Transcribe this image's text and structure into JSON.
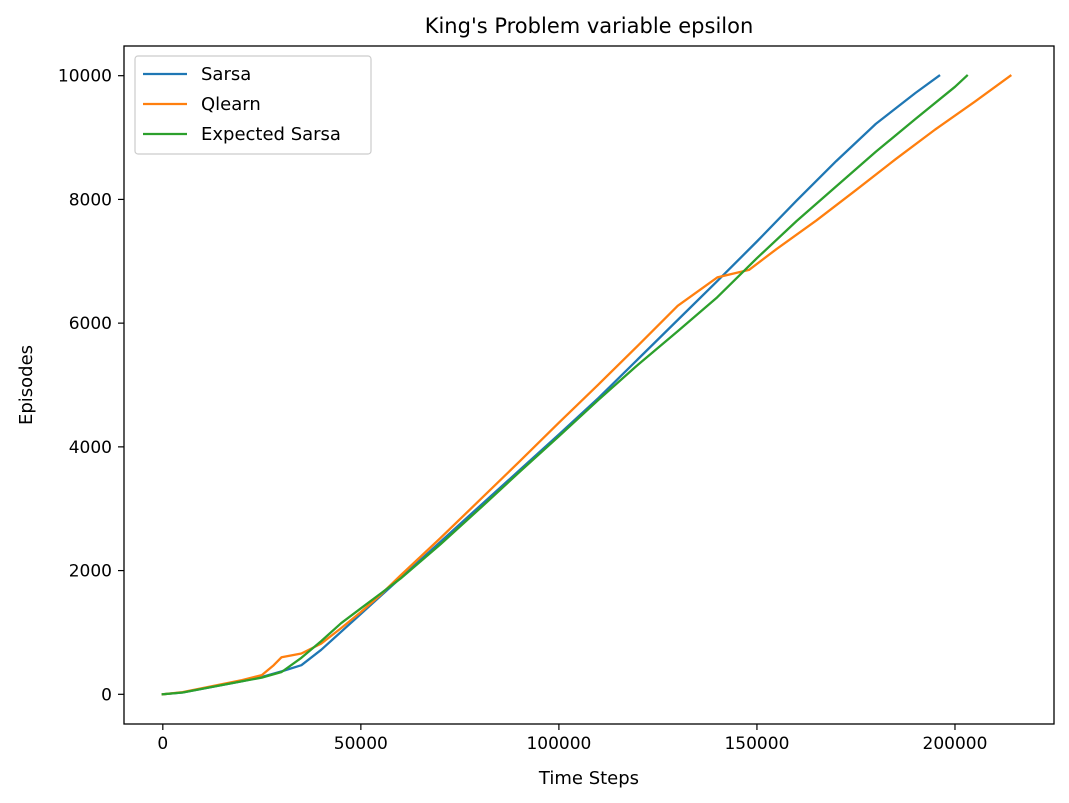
{
  "chart_data": {
    "type": "line",
    "title": "King's Problem variable epsilon",
    "xlabel": "Time Steps",
    "ylabel": "Episodes",
    "xlim": [
      -9800,
      225000
    ],
    "ylim": [
      -480,
      10480
    ],
    "xticks": [
      0,
      50000,
      100000,
      150000,
      200000
    ],
    "yticks": [
      0,
      2000,
      4000,
      6000,
      8000,
      10000
    ],
    "grid": false,
    "legend_position": "top-left",
    "series": [
      {
        "name": "Sarsa",
        "color": "#1f77b4",
        "x": [
          0,
          5000,
          10000,
          15000,
          20000,
          25000,
          30000,
          35000,
          40000,
          45000,
          50000,
          55000,
          60000,
          70000,
          80000,
          90000,
          100000,
          110000,
          120000,
          130000,
          140000,
          150000,
          160000,
          170000,
          180000,
          190000,
          196000
        ],
        "y": [
          0,
          30,
          90,
          150,
          210,
          280,
          370,
          470,
          720,
          1010,
          1300,
          1590,
          1880,
          2460,
          3040,
          3620,
          4200,
          4790,
          5420,
          6050,
          6680,
          7320,
          7980,
          8620,
          9220,
          9720,
          10000
        ]
      },
      {
        "name": "Qlearn",
        "color": "#ff7f0e",
        "x": [
          0,
          5000,
          10000,
          15000,
          20000,
          25000,
          28000,
          30000,
          35000,
          40000,
          45000,
          50000,
          55000,
          60000,
          70000,
          80000,
          90000,
          100000,
          110000,
          120000,
          130000,
          140000,
          148000,
          155000,
          165000,
          175000,
          185000,
          195000,
          205000,
          214000
        ],
        "y": [
          0,
          35,
          100,
          165,
          230,
          310,
          470,
          600,
          660,
          820,
          1070,
          1330,
          1610,
          1920,
          2520,
          3140,
          3760,
          4390,
          5010,
          5640,
          6280,
          6740,
          6860,
          7200,
          7660,
          8150,
          8650,
          9130,
          9580,
          10000
        ]
      },
      {
        "name": "Expected Sarsa",
        "color": "#2ca02c",
        "x": [
          0,
          5000,
          10000,
          15000,
          20000,
          25000,
          30000,
          35000,
          40000,
          45000,
          50000,
          55000,
          60000,
          70000,
          80000,
          90000,
          100000,
          110000,
          120000,
          130000,
          140000,
          150000,
          160000,
          170000,
          180000,
          190000,
          200000,
          203000
        ],
        "y": [
          0,
          30,
          90,
          150,
          210,
          270,
          360,
          590,
          860,
          1150,
          1390,
          1630,
          1870,
          2420,
          3000,
          3590,
          4170,
          4760,
          5330,
          5870,
          6420,
          7050,
          7650,
          8210,
          8770,
          9300,
          9820,
          10000
        ]
      }
    ]
  }
}
